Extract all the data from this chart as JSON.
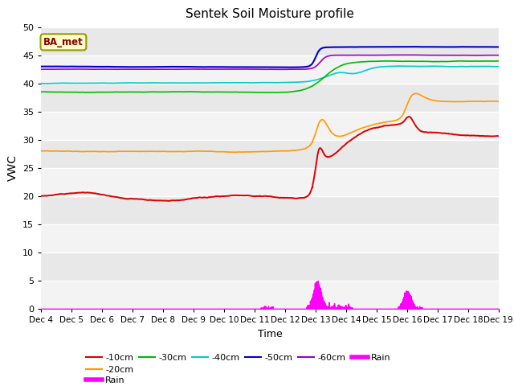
{
  "title": "Sentek Soil Moisture profile",
  "xlabel": "Time",
  "ylabel": "VWC",
  "legend_label": "BA_met",
  "ylim": [
    0,
    50
  ],
  "bg_color": "#e8e8e8",
  "colors": {
    "-10cm": "#dd0000",
    "-20cm": "#ff9900",
    "-30cm": "#00bb00",
    "-40cm": "#00cccc",
    "-50cm": "#0000cc",
    "-60cm": "#9900bb",
    "rain": "#ff00ff"
  },
  "yticks": [
    0,
    5,
    10,
    15,
    20,
    25,
    30,
    35,
    40,
    45,
    50
  ],
  "xtick_labels": [
    "Dec 4",
    "Dec 5",
    "Dec 6",
    "Dec 7",
    "Dec 8",
    "Dec 9",
    "Dec 10",
    "Dec 11",
    "Dec 12",
    "Dec 13",
    "Dec 14",
    "Dec 15",
    "Dec 16",
    "Dec 17",
    "Dec 18",
    "Dec 19"
  ]
}
